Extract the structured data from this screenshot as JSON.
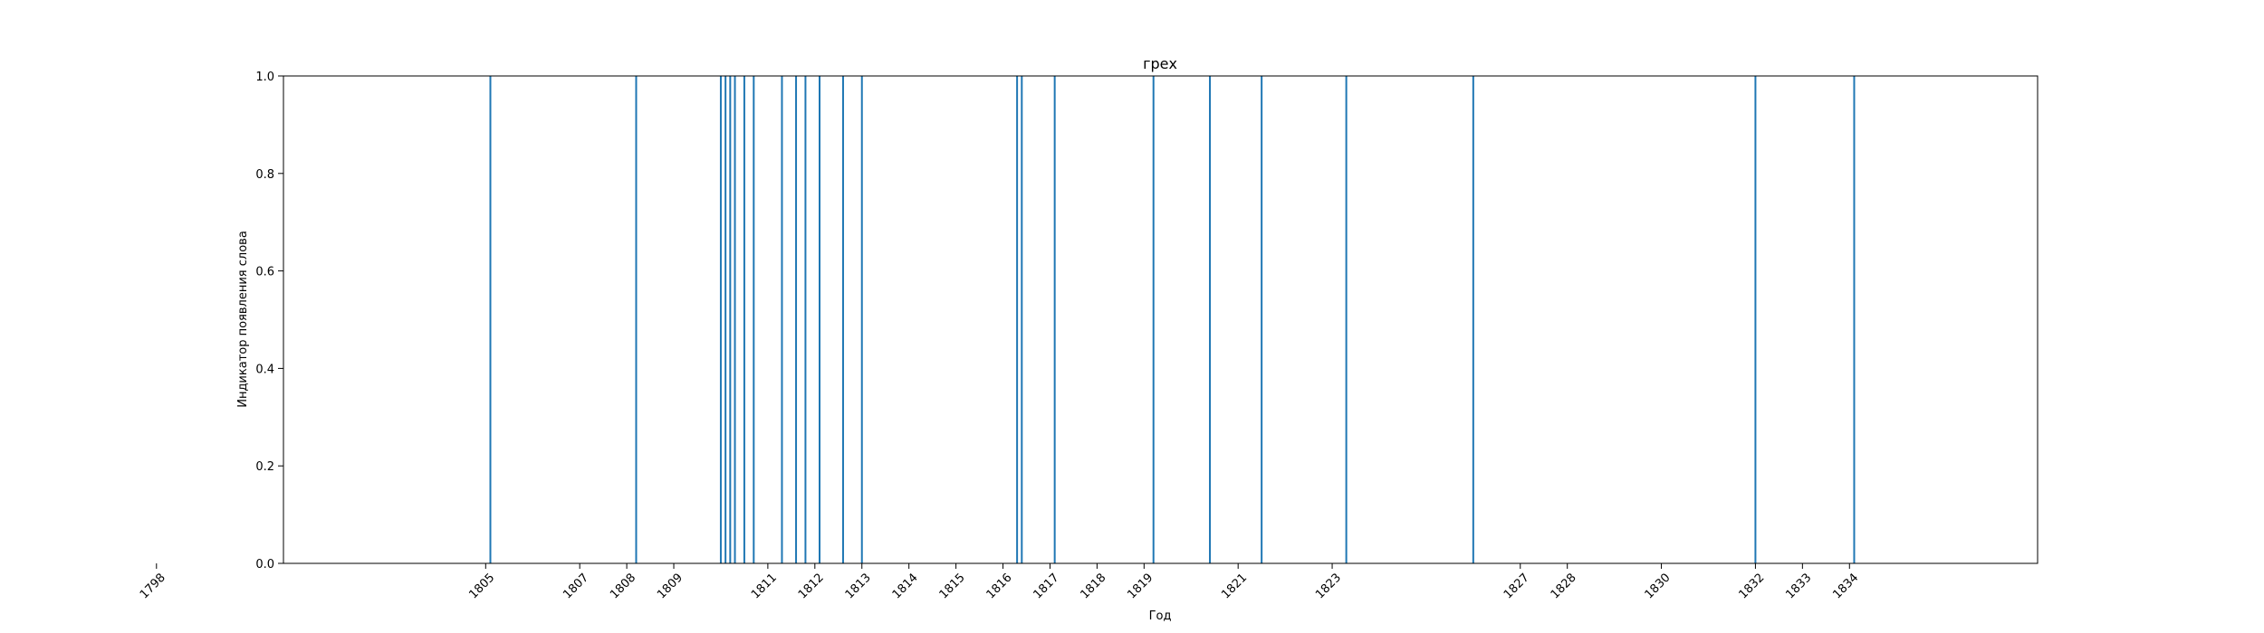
{
  "chart_data": {
    "type": "line",
    "title": "грех",
    "xlabel": "Год",
    "ylabel": "Индикатор появления слова",
    "series_color": "#1f77b4",
    "ylim": [
      0.0,
      1.0
    ],
    "y_ticks": [
      "0.0",
      "0.2",
      "0.4",
      "0.6",
      "0.8",
      "1.0"
    ],
    "grid": false,
    "x_tick_labels": [
      "1798",
      "1805",
      "1807",
      "1808",
      "1809",
      "1811",
      "1812",
      "1813",
      "1814",
      "1815",
      "1816",
      "1817",
      "1818",
      "1819",
      "1821",
      "1823",
      "1827",
      "1828",
      "1830",
      "1832",
      "1833",
      "1834"
    ],
    "event_values": [
      1805.1,
      1808.2,
      1810.0,
      1810.1,
      1810.2,
      1810.3,
      1810.5,
      1810.7,
      1811.3,
      1811.6,
      1811.8,
      1812.1,
      1812.1,
      1812.6,
      1813.0,
      1816.3,
      1816.4,
      1817.1,
      1819.2,
      1820.4,
      1821.5,
      1823.3,
      1826.0,
      1832.0,
      1834.1
    ]
  }
}
